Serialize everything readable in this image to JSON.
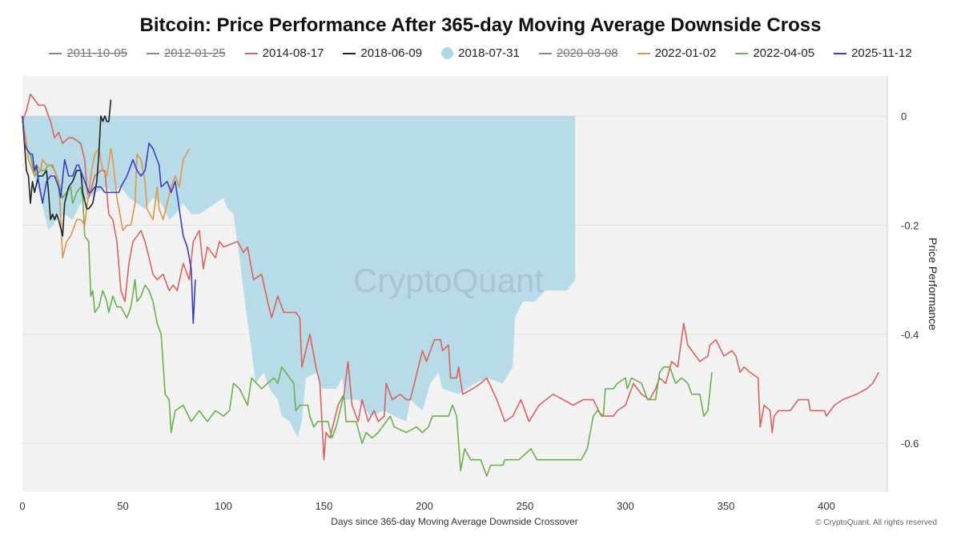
{
  "title": "Bitcoin: Price Performance After 365-day Moving Average Downside Cross",
  "watermark": "CryptoQuant",
  "copyright": "© CryptoQuant. All rights reserved",
  "legend": [
    {
      "label": "2011-10-05",
      "color": "#888888",
      "hidden": true,
      "marker": "line"
    },
    {
      "label": "2012-01-25",
      "color": "#888888",
      "hidden": true,
      "marker": "line"
    },
    {
      "label": "2014-08-17",
      "color": "#d9625f",
      "hidden": false,
      "marker": "line"
    },
    {
      "label": "2018-06-09",
      "color": "#222222",
      "hidden": false,
      "marker": "line"
    },
    {
      "label": "2018-07-31",
      "color": "#add8e6",
      "hidden": false,
      "marker": "circle"
    },
    {
      "label": "2020-03-08",
      "color": "#888888",
      "hidden": true,
      "marker": "line"
    },
    {
      "label": "2022-01-02",
      "color": "#e0944f",
      "hidden": false,
      "marker": "line"
    },
    {
      "label": "2022-04-05",
      "color": "#6ab04c",
      "hidden": false,
      "marker": "line"
    },
    {
      "label": "2025-11-12",
      "color": "#3b3bbf",
      "hidden": false,
      "marker": "line"
    }
  ],
  "chart_data": {
    "type": "line",
    "title": "Bitcoin: Price Performance After 365-day Moving Average Downside Cross",
    "xlabel": "Days since 365-day Moving Average Downside Crossover",
    "ylabel": "Price Performance",
    "xlim": [
      0,
      430
    ],
    "ylim": [
      -0.69,
      0.07
    ],
    "x_ticks": [
      "0",
      "50",
      "100",
      "150",
      "200",
      "250",
      "300",
      "350",
      "400"
    ],
    "y_ticks": [
      "0",
      "-0.2",
      "-0.4",
      "-0.6"
    ],
    "y_axis_side": "right",
    "grid": true,
    "legend_position": "top",
    "series": [
      {
        "name": "2018-07-31",
        "type": "area",
        "color": "#add8e6",
        "x": [
          0,
          1,
          5,
          9,
          11,
          13,
          17,
          21,
          25,
          29,
          33,
          37,
          41,
          45,
          49,
          53,
          57,
          61,
          65,
          69,
          73,
          76,
          80,
          84,
          88,
          92,
          96,
          100,
          102,
          105,
          108,
          111,
          114,
          116,
          120,
          123,
          127,
          129,
          133,
          137,
          139,
          141,
          147,
          149,
          156,
          159,
          161,
          167,
          173,
          180,
          185,
          191,
          193,
          199,
          203,
          207,
          209,
          217,
          225,
          231,
          239,
          244,
          245,
          249,
          255,
          260,
          267,
          271,
          275
        ],
        "y": [
          0,
          -0.04,
          -0.1,
          -0.15,
          -0.18,
          -0.21,
          -0.19,
          -0.18,
          -0.19,
          -0.16,
          -0.15,
          -0.14,
          -0.13,
          -0.14,
          -0.13,
          -0.15,
          -0.16,
          -0.17,
          -0.15,
          -0.16,
          -0.19,
          -0.18,
          -0.16,
          -0.18,
          -0.18,
          -0.17,
          -0.16,
          -0.15,
          -0.17,
          -0.18,
          -0.26,
          -0.35,
          -0.43,
          -0.49,
          -0.47,
          -0.5,
          -0.52,
          -0.55,
          -0.56,
          -0.59,
          -0.56,
          -0.48,
          -0.47,
          -0.5,
          -0.5,
          -0.48,
          -0.52,
          -0.52,
          -0.55,
          -0.54,
          -0.55,
          -0.56,
          -0.52,
          -0.54,
          -0.49,
          -0.47,
          -0.5,
          -0.51,
          -0.49,
          -0.48,
          -0.49,
          -0.46,
          -0.37,
          -0.34,
          -0.34,
          -0.32,
          -0.32,
          -0.32,
          -0.3
        ]
      },
      {
        "name": "2014-08-17",
        "color": "#d9625f",
        "x": [
          0,
          2,
          4,
          6,
          8,
          11,
          14,
          16,
          18,
          20,
          23,
          25,
          29,
          31,
          32,
          33,
          36,
          39,
          41,
          43,
          45,
          47,
          49,
          51,
          53,
          55,
          59,
          61,
          65,
          67,
          70,
          73,
          75,
          77,
          80,
          83,
          85,
          88,
          90,
          92,
          96,
          98,
          100,
          107,
          110,
          112,
          115,
          119,
          122,
          124,
          127,
          130,
          136,
          138,
          139,
          143,
          146,
          148,
          150,
          151,
          153,
          157,
          160,
          162,
          164,
          167,
          169,
          172,
          175,
          177,
          180,
          181,
          184,
          188,
          191,
          193,
          195,
          199,
          201,
          205,
          208,
          209,
          212,
          213,
          216,
          217,
          219,
          224,
          228,
          231,
          236,
          240,
          244,
          248,
          252,
          257,
          264,
          269,
          274,
          279,
          284,
          288,
          294,
          296,
          300,
          304,
          308,
          312,
          315,
          317,
          320,
          323,
          326,
          329,
          331,
          337,
          341,
          342,
          345,
          349,
          353,
          355,
          357,
          359,
          362,
          366,
          367,
          369,
          372,
          373,
          374,
          376,
          382,
          386,
          391,
          392,
          399,
          400,
          404,
          408,
          415,
          420,
          423,
          426
        ],
        "y": [
          -0.01,
          0.01,
          0.04,
          0.03,
          0.02,
          0.02,
          -0.01,
          -0.04,
          -0.03,
          -0.05,
          -0.04,
          -0.04,
          -0.05,
          -0.08,
          -0.13,
          -0.15,
          -0.11,
          -0.1,
          -0.1,
          -0.18,
          -0.19,
          -0.23,
          -0.32,
          -0.34,
          -0.27,
          -0.23,
          -0.21,
          -0.23,
          -0.29,
          -0.3,
          -0.29,
          -0.32,
          -0.31,
          -0.32,
          -0.27,
          -0.3,
          -0.23,
          -0.21,
          -0.28,
          -0.24,
          -0.26,
          -0.23,
          -0.24,
          -0.23,
          -0.25,
          -0.24,
          -0.3,
          -0.29,
          -0.34,
          -0.37,
          -0.33,
          -0.36,
          -0.36,
          -0.37,
          -0.46,
          -0.4,
          -0.46,
          -0.49,
          -0.63,
          -0.58,
          -0.59,
          -0.53,
          -0.51,
          -0.45,
          -0.53,
          -0.56,
          -0.52,
          -0.56,
          -0.54,
          -0.56,
          -0.55,
          -0.49,
          -0.52,
          -0.51,
          -0.52,
          -0.52,
          -0.49,
          -0.43,
          -0.45,
          -0.41,
          -0.41,
          -0.43,
          -0.42,
          -0.48,
          -0.48,
          -0.46,
          -0.51,
          -0.5,
          -0.49,
          -0.48,
          -0.52,
          -0.56,
          -0.55,
          -0.52,
          -0.56,
          -0.53,
          -0.51,
          -0.52,
          -0.53,
          -0.52,
          -0.52,
          -0.55,
          -0.55,
          -0.54,
          -0.53,
          -0.49,
          -0.51,
          -0.52,
          -0.5,
          -0.48,
          -0.49,
          -0.45,
          -0.46,
          -0.38,
          -0.42,
          -0.45,
          -0.44,
          -0.42,
          -0.41,
          -0.44,
          -0.43,
          -0.44,
          -0.47,
          -0.46,
          -0.47,
          -0.48,
          -0.57,
          -0.53,
          -0.54,
          -0.58,
          -0.55,
          -0.54,
          -0.54,
          -0.52,
          -0.52,
          -0.54,
          -0.54,
          -0.55,
          -0.53,
          -0.52,
          -0.51,
          -0.5,
          -0.49,
          -0.47
        ]
      },
      {
        "name": "2022-04-05",
        "color": "#6ab04c",
        "x": [
          0,
          2,
          4,
          6,
          9,
          11,
          13,
          15,
          17,
          20,
          22,
          24,
          25,
          27,
          29,
          30,
          31,
          33,
          34,
          35,
          36,
          38,
          40,
          42,
          43,
          45,
          47,
          49,
          52,
          54,
          56,
          57,
          59,
          61,
          63,
          65,
          67,
          69,
          71,
          73,
          74,
          76,
          80,
          84,
          88,
          92,
          96,
          100,
          103,
          105,
          108,
          112,
          114,
          119,
          122,
          125,
          127,
          129,
          133,
          135,
          136,
          138,
          142,
          143,
          145,
          147,
          149,
          152,
          154,
          156,
          160,
          161,
          166,
          169,
          171,
          174,
          177,
          183,
          185,
          191,
          196,
          199,
          202,
          204,
          208,
          212,
          214,
          216,
          218,
          220,
          223,
          228,
          231,
          233,
          239,
          240,
          247,
          253,
          256,
          260,
          267,
          273,
          278,
          281,
          284,
          286,
          289,
          290,
          294,
          296,
          300,
          301,
          303,
          308,
          311,
          315,
          317,
          319,
          322,
          325,
          328,
          331,
          333,
          337,
          339,
          341,
          343
        ],
        "y": [
          0,
          -0.06,
          -0.07,
          -0.11,
          -0.1,
          -0.1,
          -0.09,
          -0.09,
          -0.11,
          -0.15,
          -0.14,
          -0.13,
          -0.16,
          -0.14,
          -0.13,
          -0.15,
          -0.22,
          -0.23,
          -0.33,
          -0.32,
          -0.36,
          -0.35,
          -0.32,
          -0.34,
          -0.36,
          -0.33,
          -0.35,
          -0.35,
          -0.37,
          -0.35,
          -0.3,
          -0.34,
          -0.33,
          -0.31,
          -0.32,
          -0.34,
          -0.38,
          -0.4,
          -0.51,
          -0.52,
          -0.58,
          -0.54,
          -0.53,
          -0.56,
          -0.54,
          -0.56,
          -0.54,
          -0.55,
          -0.54,
          -0.49,
          -0.5,
          -0.53,
          -0.48,
          -0.5,
          -0.49,
          -0.48,
          -0.49,
          -0.46,
          -0.48,
          -0.49,
          -0.54,
          -0.53,
          -0.53,
          -0.55,
          -0.57,
          -0.56,
          -0.56,
          -0.56,
          -0.59,
          -0.57,
          -0.51,
          -0.56,
          -0.56,
          -0.6,
          -0.58,
          -0.59,
          -0.58,
          -0.55,
          -0.57,
          -0.58,
          -0.57,
          -0.58,
          -0.57,
          -0.55,
          -0.55,
          -0.55,
          -0.53,
          -0.55,
          -0.65,
          -0.61,
          -0.63,
          -0.63,
          -0.66,
          -0.64,
          -0.64,
          -0.63,
          -0.63,
          -0.61,
          -0.63,
          -0.63,
          -0.63,
          -0.63,
          -0.63,
          -0.61,
          -0.55,
          -0.54,
          -0.55,
          -0.5,
          -0.5,
          -0.49,
          -0.48,
          -0.5,
          -0.48,
          -0.49,
          -0.52,
          -0.52,
          -0.47,
          -0.46,
          -0.46,
          -0.49,
          -0.48,
          -0.49,
          -0.51,
          -0.51,
          -0.55,
          -0.54,
          -0.47
        ]
      },
      {
        "name": "2022-01-02",
        "color": "#e0944f",
        "x": [
          0,
          2,
          3,
          4,
          6,
          7,
          9,
          10,
          12,
          14,
          16,
          18,
          19,
          20,
          22,
          24,
          25,
          27,
          29,
          31,
          34,
          36,
          38,
          40,
          42,
          44,
          45,
          47,
          50,
          52,
          54,
          56,
          57,
          59,
          61,
          62,
          65,
          67,
          68,
          70,
          72,
          74,
          76,
          78,
          80,
          83
        ],
        "y": [
          0,
          -0.05,
          -0.08,
          -0.09,
          -0.11,
          -0.09,
          -0.1,
          -0.08,
          -0.09,
          -0.09,
          -0.1,
          -0.12,
          -0.18,
          -0.26,
          -0.23,
          -0.22,
          -0.21,
          -0.19,
          -0.19,
          -0.2,
          -0.11,
          -0.07,
          -0.06,
          -0.1,
          -0.11,
          -0.06,
          -0.08,
          -0.15,
          -0.21,
          -0.2,
          -0.2,
          -0.16,
          -0.07,
          -0.08,
          -0.12,
          -0.17,
          -0.19,
          -0.13,
          -0.17,
          -0.19,
          -0.16,
          -0.13,
          -0.11,
          -0.13,
          -0.08,
          -0.06
        ]
      },
      {
        "name": "2018-06-09",
        "color": "#222222",
        "x": [
          0,
          1,
          2,
          3,
          4,
          5,
          6,
          8,
          9,
          10,
          12,
          13,
          14,
          15,
          16,
          17,
          18,
          20,
          21,
          23,
          25,
          27,
          29,
          30,
          32,
          33,
          35,
          37,
          38,
          39,
          40,
          41,
          42,
          43,
          44
        ],
        "y": [
          0,
          -0.05,
          -0.1,
          -0.11,
          -0.16,
          -0.12,
          -0.14,
          -0.11,
          -0.11,
          -0.11,
          -0.1,
          -0.14,
          -0.19,
          -0.18,
          -0.19,
          -0.18,
          -0.19,
          -0.22,
          -0.16,
          -0.13,
          -0.12,
          -0.1,
          -0.1,
          -0.14,
          -0.17,
          -0.17,
          -0.16,
          -0.12,
          -0.07,
          0.0,
          -0.01,
          0.0,
          -0.01,
          -0.01,
          0.03
        ]
      },
      {
        "name": "2025-11-12",
        "color": "#3b3bbf",
        "x": [
          0,
          1,
          2,
          4,
          5,
          6,
          7,
          8,
          10,
          11,
          12,
          14,
          15,
          16,
          18,
          19,
          21,
          23,
          25,
          27,
          28,
          29,
          31,
          33,
          34,
          36,
          39,
          41,
          43,
          46,
          48,
          49,
          52,
          55,
          57,
          59,
          61,
          63,
          65,
          68,
          69,
          72,
          74,
          76,
          78,
          80,
          82,
          84,
          85,
          86
        ],
        "y": [
          0,
          -0.05,
          -0.06,
          -0.07,
          -0.07,
          -0.1,
          -0.09,
          -0.12,
          -0.16,
          -0.14,
          -0.12,
          -0.11,
          -0.11,
          -0.11,
          -0.13,
          -0.15,
          -0.08,
          -0.11,
          -0.11,
          -0.09,
          -0.09,
          -0.1,
          -0.12,
          -0.14,
          -0.14,
          -0.13,
          -0.13,
          -0.14,
          -0.14,
          -0.14,
          -0.14,
          -0.13,
          -0.11,
          -0.08,
          -0.1,
          -0.11,
          -0.1,
          -0.05,
          -0.06,
          -0.09,
          -0.13,
          -0.12,
          -0.14,
          -0.12,
          -0.17,
          -0.22,
          -0.24,
          -0.28,
          -0.38,
          -0.3
        ]
      }
    ]
  }
}
